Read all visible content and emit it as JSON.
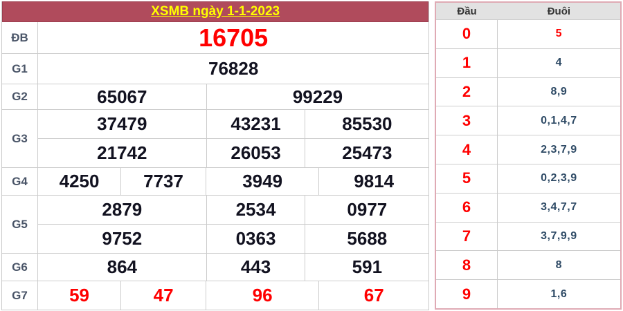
{
  "results": {
    "title": "XSMB ngày 1-1-2023",
    "rows": [
      {
        "label": "ĐB",
        "lines": [
          [
            "16705"
          ]
        ]
      },
      {
        "label": "G1",
        "lines": [
          [
            "76828"
          ]
        ]
      },
      {
        "label": "G2",
        "lines": [
          [
            "65067",
            "99229"
          ]
        ]
      },
      {
        "label": "G3",
        "lines": [
          [
            "37479",
            "43231",
            "85530"
          ],
          [
            "21742",
            "26053",
            "25473"
          ]
        ]
      },
      {
        "label": "G4",
        "lines": [
          [
            "4250",
            "7737",
            "3949",
            "9814"
          ]
        ]
      },
      {
        "label": "G5",
        "lines": [
          [
            "2879",
            "2534",
            "0977"
          ],
          [
            "9752",
            "0363",
            "5688"
          ]
        ]
      },
      {
        "label": "G6",
        "lines": [
          [
            "864",
            "443",
            "591"
          ]
        ]
      },
      {
        "label": "G7",
        "lines": [
          [
            "59",
            "47",
            "96",
            "67"
          ]
        ]
      }
    ]
  },
  "head_tail": {
    "header": {
      "dau": "Đầu",
      "duoi": "Đuôi"
    },
    "rows": [
      {
        "dau": "0",
        "duoi": "5",
        "duoi_red": true
      },
      {
        "dau": "1",
        "duoi": "4"
      },
      {
        "dau": "2",
        "duoi": "8,9"
      },
      {
        "dau": "3",
        "duoi": "0,1,4,7"
      },
      {
        "dau": "4",
        "duoi": "2,3,7,9"
      },
      {
        "dau": "5",
        "duoi": "0,2,3,9"
      },
      {
        "dau": "6",
        "duoi": "3,4,7,7"
      },
      {
        "dau": "7",
        "duoi": "3,7,9,9"
      },
      {
        "dau": "8",
        "duoi": "8"
      },
      {
        "dau": "9",
        "duoi": "1,6"
      }
    ]
  },
  "colors": {
    "title_bar_bg": "#b04b5c",
    "title_text": "#ffff00",
    "accent_red": "#ff0000",
    "number_text": "#121220",
    "label_text": "#4a5568",
    "tail_text": "#2f4b66",
    "grid_border": "#cccccc",
    "head_tail_outer_border": "#dfaab4",
    "head_tail_header_bg": "#e2e2e2"
  }
}
